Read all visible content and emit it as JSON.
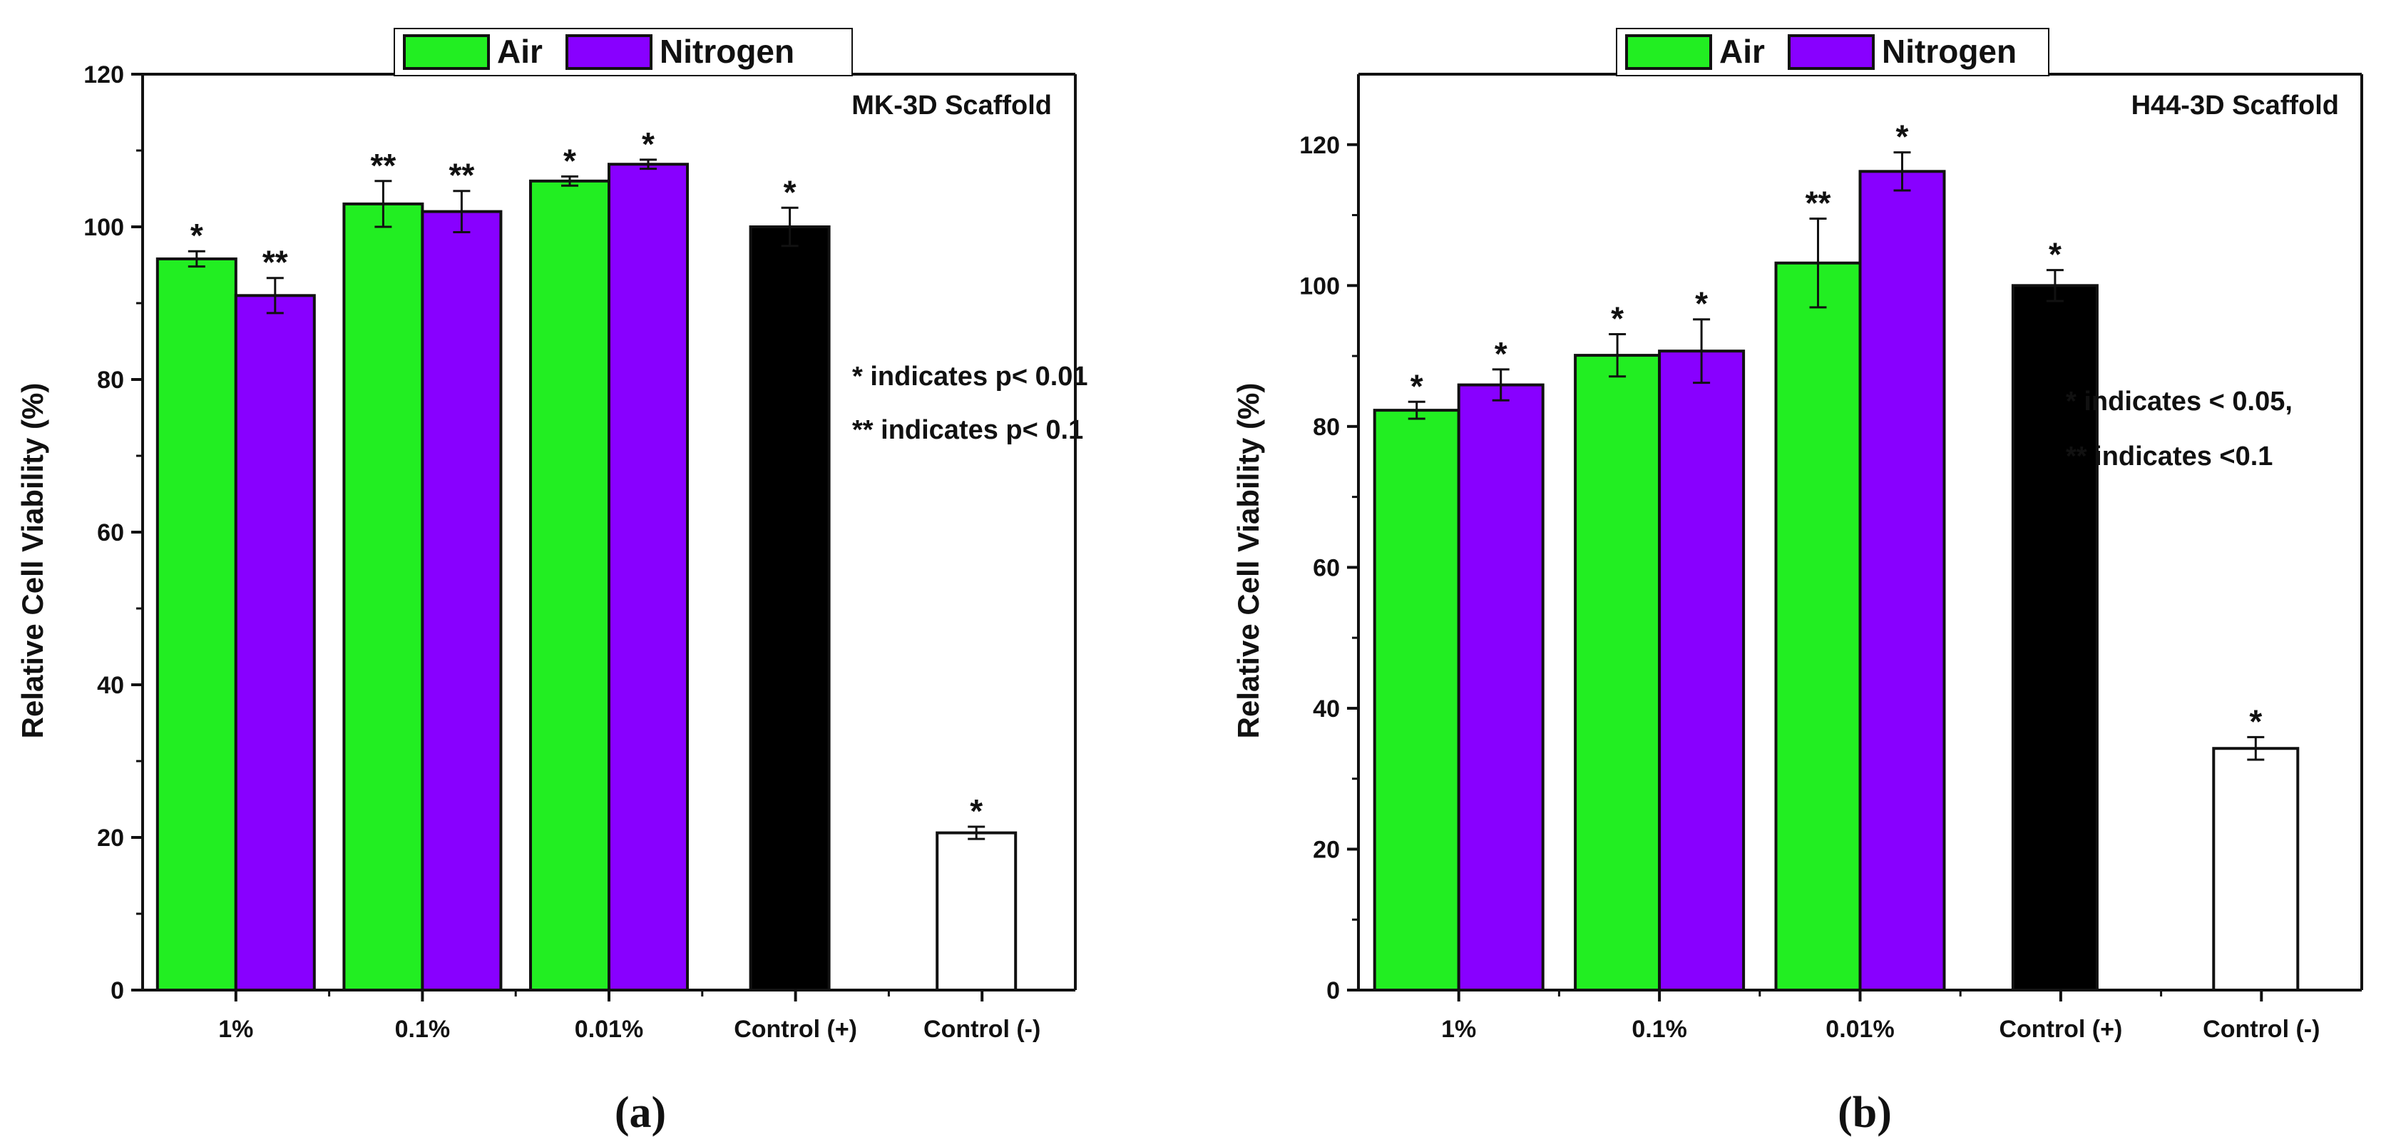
{
  "chart_data": [
    {
      "type": "bar",
      "ylabel": "Relative Cell Viability (%)",
      "ylim": [
        0,
        120
      ],
      "yticks": [
        0,
        20,
        40,
        60,
        80,
        100,
        120
      ],
      "categories": [
        "1%",
        "0.1%",
        "0.01%",
        "Control (+)",
        "Control (-)"
      ],
      "series": [
        {
          "name": "Air",
          "color": "#22ee22",
          "values": [
            95.8,
            103,
            106,
            null,
            null
          ],
          "errors": [
            1,
            3,
            0.6,
            null,
            null
          ],
          "stars": [
            "*",
            "**",
            "*",
            null,
            null
          ]
        },
        {
          "name": "Nitrogen",
          "color": "#8800ff",
          "values": [
            91,
            102,
            108.2,
            null,
            null
          ],
          "errors": [
            2.3,
            2.7,
            0.6,
            null,
            null
          ],
          "stars": [
            "**",
            "**",
            "*",
            null,
            null
          ]
        }
      ],
      "controls": [
        {
          "category": "Control (+)",
          "value": 100,
          "error": 2.5,
          "color": "#000000",
          "star": "*"
        },
        {
          "category": "Control (-)",
          "value": 20.6,
          "error": 0.8,
          "color": "#ffffff",
          "star": "*"
        }
      ],
      "scaffold_label": "MK-3D Scaffold",
      "annotations": [
        "* indicates p< 0.01",
        "** indicates p< 0.1"
      ],
      "legend": "top",
      "panel_label": "(a)"
    },
    {
      "type": "bar",
      "ylabel": "Relative Cell Viability (%)",
      "ylim": [
        0,
        130
      ],
      "yticks": [
        0,
        20,
        40,
        60,
        80,
        100,
        120
      ],
      "categories": [
        "1%",
        "0.1%",
        "0.01%",
        "Control (+)",
        "Control (-)"
      ],
      "series": [
        {
          "name": "Air",
          "color": "#22ee22",
          "values": [
            82.3,
            90.1,
            103.2,
            null,
            null
          ],
          "errors": [
            1.2,
            3,
            6.3,
            null,
            null
          ],
          "stars": [
            "*",
            "*",
            "**",
            null,
            null
          ]
        },
        {
          "name": "Nitrogen",
          "color": "#8800ff",
          "values": [
            85.9,
            90.7,
            116.2,
            null,
            null
          ],
          "errors": [
            2.2,
            4.5,
            2.7,
            null,
            null
          ],
          "stars": [
            "*",
            "*",
            "*",
            null,
            null
          ]
        }
      ],
      "controls": [
        {
          "category": "Control (+)",
          "value": 100,
          "error": 2.2,
          "color": "#000000",
          "star": "*"
        },
        {
          "category": "Control (-)",
          "value": 34.3,
          "error": 1.6,
          "color": "#ffffff",
          "star": "*"
        }
      ],
      "scaffold_label": "H44-3D Scaffold",
      "annotations": [
        "* indicates < 0.05,",
        "** indicates <0.1"
      ],
      "legend": "top",
      "panel_label": "(b)"
    }
  ]
}
